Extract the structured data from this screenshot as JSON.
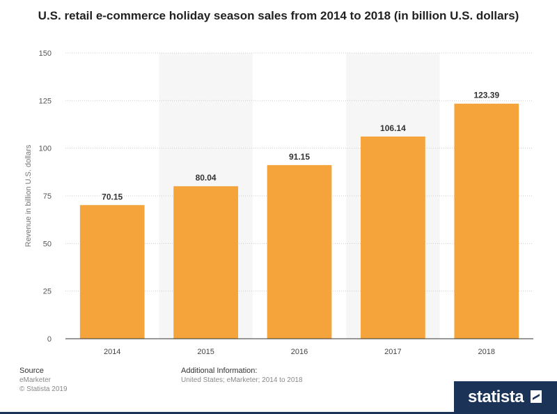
{
  "chart_data": {
    "type": "bar",
    "title": "U.S. retail e-commerce holiday season sales from 2014 to 2018 (in billion U.S. dollars)",
    "xlabel": "",
    "ylabel": "Revenue in billion U.S. dollars",
    "categories": [
      "2014",
      "2015",
      "2016",
      "2017",
      "2018"
    ],
    "values": [
      70.15,
      80.04,
      91.15,
      106.14,
      123.39
    ],
    "value_labels": [
      "70.15",
      "80.04",
      "91.15",
      "106.14",
      "123.39"
    ],
    "ylim": [
      0,
      150
    ],
    "yticks": [
      0,
      25,
      50,
      75,
      100,
      125,
      150
    ],
    "grid": true,
    "bar_color": "#f4a43a"
  },
  "footer": {
    "source_heading": "Source",
    "source_text": "eMarketer",
    "copyright": "© Statista 2019",
    "additional_heading": "Additional Information:",
    "additional_text": "United States; eMarketer; 2014 to 2018"
  },
  "brand": {
    "name": "statista"
  }
}
